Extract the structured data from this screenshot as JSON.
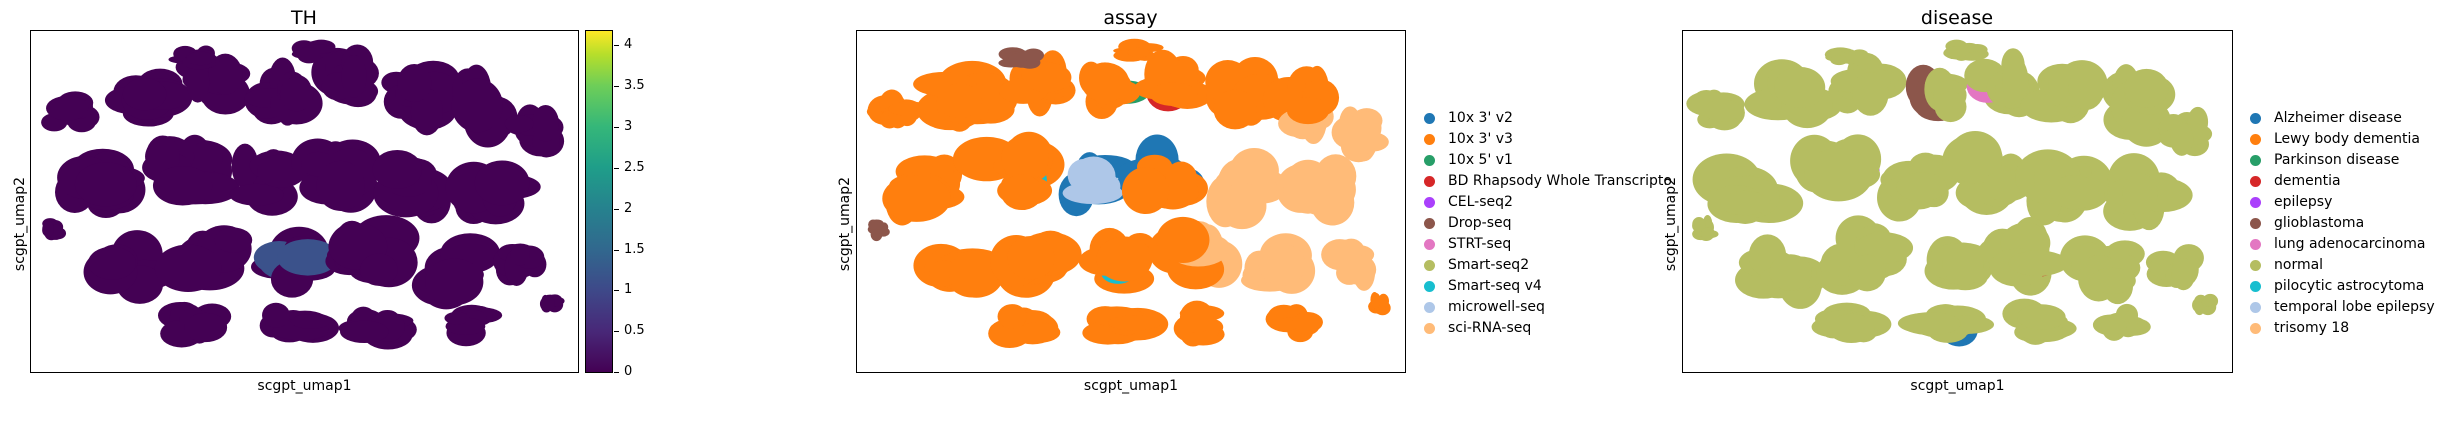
{
  "chart_data": [
    {
      "type": "scatter",
      "title": "TH",
      "xlabel": "scgpt_umap1",
      "ylabel": "scgpt_umap2",
      "colorbar": {
        "range": [
          0,
          4.2
        ],
        "ticks": [
          "0",
          "0.5",
          "1",
          "1.5",
          "2",
          "2.5",
          "3",
          "3.5",
          "4"
        ],
        "colormap": "viridis"
      },
      "point_color": "#440154",
      "highlight_colors": [
        "#3b528b",
        "#21918c",
        "#5ec962"
      ]
    },
    {
      "type": "scatter",
      "title": "assay",
      "xlabel": "scgpt_umap1",
      "ylabel": "scgpt_umap2",
      "legend_placement": "right",
      "legend": [
        {
          "label": "10x 3' v2",
          "color": "#1f77b4"
        },
        {
          "label": "10x 3' v3",
          "color": "#ff7f0e"
        },
        {
          "label": "10x 5' v1",
          "color": "#279e68"
        },
        {
          "label": "BD Rhapsody Whole Transcripto",
          "color": "#d62728"
        },
        {
          "label": "CEL-seq2",
          "color": "#aa40fc"
        },
        {
          "label": "Drop-seq",
          "color": "#8c564b"
        },
        {
          "label": "STRT-seq",
          "color": "#e377c2"
        },
        {
          "label": "Smart-seq2",
          "color": "#b5bd61"
        },
        {
          "label": "Smart-seq v4",
          "color": "#17becf"
        },
        {
          "label": "microwell-seq",
          "color": "#aec7e8"
        },
        {
          "label": "sci-RNA-seq",
          "color": "#ffbb78"
        }
      ]
    },
    {
      "type": "scatter",
      "title": "disease",
      "xlabel": "scgpt_umap1",
      "ylabel": "scgpt_umap2",
      "legend_placement": "right",
      "legend": [
        {
          "label": "Alzheimer disease",
          "color": "#1f77b4"
        },
        {
          "label": "Lewy body dementia",
          "color": "#ff7f0e"
        },
        {
          "label": "Parkinson disease",
          "color": "#279e68"
        },
        {
          "label": "dementia",
          "color": "#d62728"
        },
        {
          "label": "epilepsy",
          "color": "#aa40fc"
        },
        {
          "label": "glioblastoma",
          "color": "#8c564b"
        },
        {
          "label": "lung adenocarcinoma",
          "color": "#e377c2"
        },
        {
          "label": "normal",
          "color": "#b5bd61"
        },
        {
          "label": "pilocytic astrocytoma",
          "color": "#17becf"
        },
        {
          "label": "temporal lobe epilepsy",
          "color": "#aec7e8"
        },
        {
          "label": "trisomy 18",
          "color": "#ffbb78"
        }
      ]
    }
  ]
}
